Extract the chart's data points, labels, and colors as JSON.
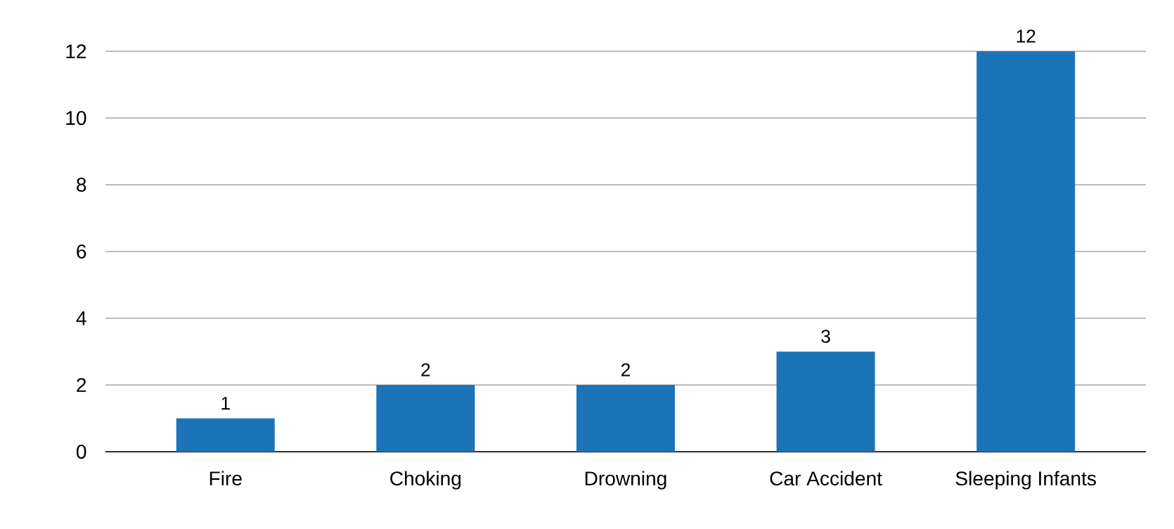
{
  "chart_data": {
    "type": "bar",
    "categories": [
      "Fire",
      "Choking",
      "Drowning",
      "Car Accident",
      "Sleeping Infants"
    ],
    "values": [
      1,
      2,
      2,
      3,
      12
    ],
    "color": "#1b74b8",
    "ylim": [
      0,
      12
    ],
    "yticks": [
      0,
      2,
      4,
      6,
      8,
      10,
      12
    ],
    "grid": "y",
    "data_labels": true
  }
}
